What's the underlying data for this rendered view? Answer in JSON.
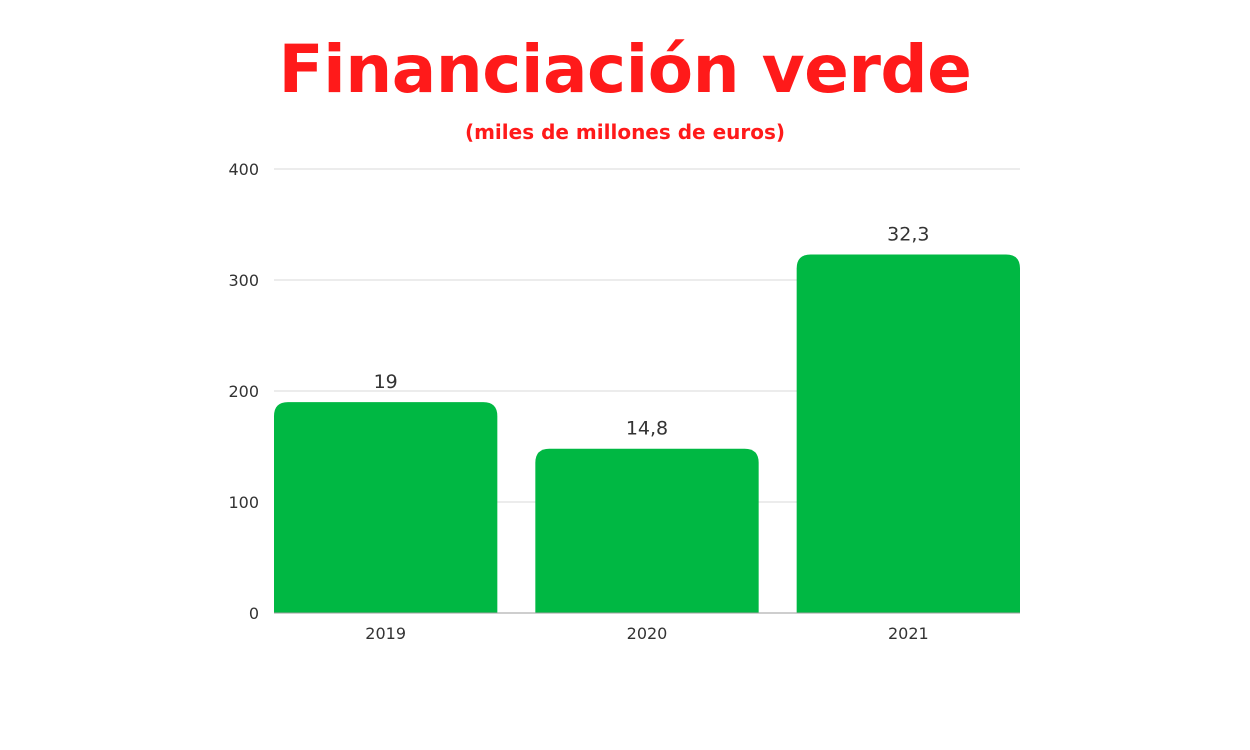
{
  "chart_data": {
    "type": "bar",
    "title": "Financiación verde",
    "subtitle": "(miles de millones de euros)",
    "categories": [
      "2019",
      "2020",
      "2021"
    ],
    "values": [
      190,
      148,
      323
    ],
    "data_labels": [
      "19",
      "14,8",
      "32,3"
    ],
    "y_ticks": [
      "0",
      "100",
      "200",
      "300",
      "400"
    ],
    "ylim": [
      0,
      400
    ],
    "xlabel": "",
    "ylabel": "",
    "grid": true,
    "legend": "none",
    "bar_color": "#00b843",
    "title_color": "#ff1a1a",
    "grid_color": "#d9d9d9"
  }
}
